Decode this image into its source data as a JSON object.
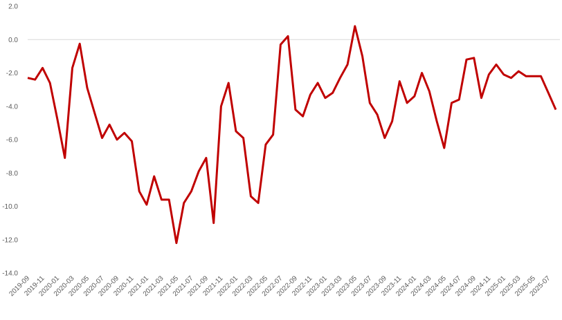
{
  "chart_data": {
    "type": "line",
    "categories": [
      "2019-09",
      null,
      "2019-11",
      null,
      "2020-01",
      null,
      "2020-03",
      null,
      "2020-05",
      null,
      "2020-07",
      null,
      "2020-09",
      null,
      "2020-11",
      null,
      "2021-01",
      null,
      "2021-03",
      null,
      "2021-05",
      null,
      "2021-07",
      null,
      "2021-09",
      null,
      "2021-11",
      null,
      "2022-01",
      null,
      "2022-03",
      null,
      "2022-05",
      null,
      "2022-07",
      null,
      "2022-09",
      null,
      "2022-11",
      null,
      "2023-01",
      null,
      "2023-03",
      null,
      "2023-05",
      null,
      "2023-07",
      null,
      "2023-09",
      null,
      "2023-11",
      null,
      "2024-01",
      null,
      "2024-03",
      null,
      "2024-05",
      null,
      "2024-07",
      null,
      "2024-09",
      null,
      "2024-11",
      null,
      "2025-01",
      null,
      "2025-03",
      null,
      "2025-05",
      null,
      "2025-07",
      null
    ],
    "series": [
      {
        "color": "#c00000",
        "values": [
          -2.3,
          -2.4,
          -1.7,
          -2.6,
          -4.8,
          -7.1,
          -1.7,
          -0.25,
          -2.9,
          -4.4,
          -5.9,
          -5.1,
          -6.0,
          -5.6,
          -6.1,
          -9.1,
          -9.9,
          -8.2,
          -9.6,
          -9.6,
          -12.2,
          -9.8,
          -9.1,
          -7.9,
          -7.1,
          -11.0,
          -4.0,
          -2.6,
          -5.5,
          -5.9,
          -9.4,
          -9.8,
          -6.3,
          -5.7,
          -0.3,
          0.2,
          -4.2,
          -4.6,
          -3.3,
          -2.6,
          -3.5,
          -3.2,
          -2.3,
          -1.5,
          0.8,
          -1.0,
          -3.8,
          -4.5,
          -5.9,
          -4.9,
          -2.5,
          -3.8,
          -3.4,
          -2.0,
          -3.1,
          -4.9,
          -6.5,
          -3.8,
          -3.6,
          -1.2,
          -1.1,
          -3.5,
          -2.1,
          -1.5,
          -2.1,
          -2.3,
          -1.9,
          -2.2,
          -2.2,
          -2.2,
          -3.2,
          -4.2
        ]
      }
    ],
    "ylim": [
      -14,
      2
    ],
    "yticks": [
      {
        "value": 2,
        "label": "2.0"
      },
      {
        "value": 0,
        "label": "0.0"
      },
      {
        "value": -2,
        "label": "-2.0"
      },
      {
        "value": -4,
        "label": "-4.0"
      },
      {
        "value": -6,
        "label": "-6.0"
      },
      {
        "value": -8,
        "label": "-8.0"
      },
      {
        "value": -10,
        "label": "-10.0"
      },
      {
        "value": -12,
        "label": "-12.0"
      },
      {
        "value": -14,
        "label": "-14.0"
      }
    ],
    "zero_line": true
  }
}
